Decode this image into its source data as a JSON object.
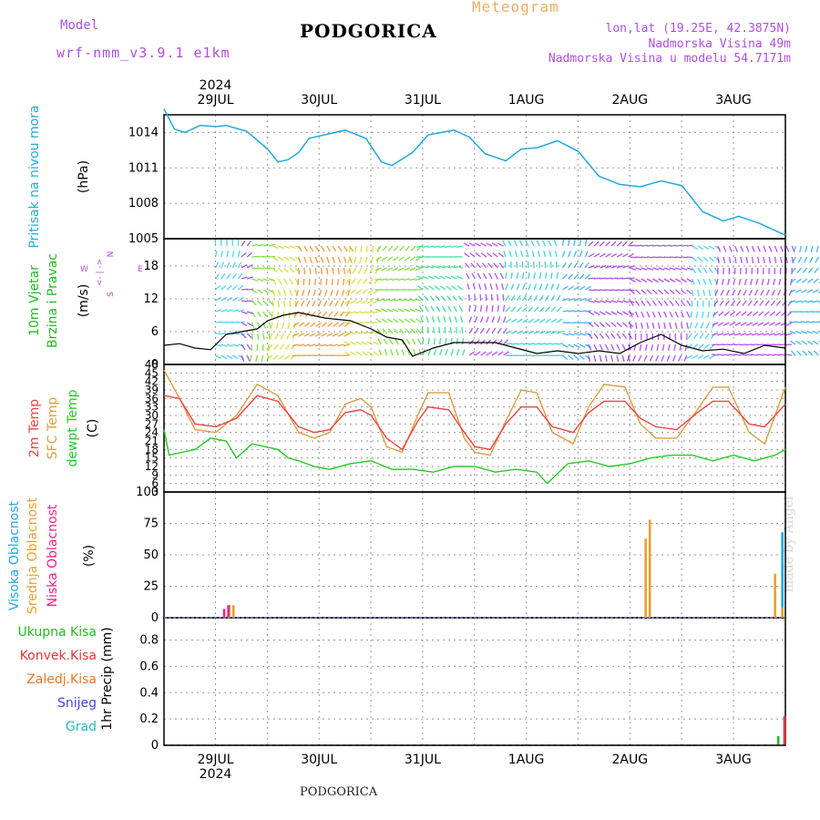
{
  "header": {
    "model_label": "Model",
    "model_name": "wrf-nmm_v3.9.1 e1km",
    "city": "PODGORICA",
    "meteogram": "Meteogram",
    "coords": "lon,lat (19.25E, 42.3875N)",
    "altitude": "Nadmorska Visina 49m",
    "model_altitude": "Nadmorska Visina u modelu 54.7171m",
    "year_top": "2024",
    "year_bottom": "2024",
    "footer_city": "PODGORICA",
    "watermark": "made by Angel"
  },
  "colors": {
    "pressure": "#22aadd",
    "wind_label": "#22bb22",
    "temp2m": "#ee4444",
    "sfc_temp": "#d8a040",
    "dewpoint": "#22cc22",
    "high_cloud": "#22aadd",
    "mid_cloud": "#e8a030",
    "low_cloud": "#ee2288",
    "total_precip": "#22bb22",
    "convective": "#ee3333",
    "freezing": "#ee7722",
    "snow": "#4444dd",
    "hail": "#22bbbb",
    "compass": "#b04ee0"
  },
  "chart_data": [
    {
      "type": "line",
      "ylabels": [
        "Pritisak na nivou mora",
        "(hPa)"
      ],
      "yticks": [
        "1014",
        "1011",
        "1008",
        "1005"
      ],
      "ylim": [
        1005,
        1015.5
      ],
      "days": [
        "29JUL",
        "30JUL",
        "31JUL",
        "1AUG",
        "2AUG",
        "3AUG"
      ],
      "xlim": [
        0,
        6
      ],
      "grid": true,
      "series": [
        {
          "x": [
            0,
            0.1,
            0.2,
            0.35,
            0.5,
            0.6,
            0.8,
            1.0,
            1.1,
            1.2,
            1.3,
            1.4,
            1.55,
            1.75,
            1.95,
            2.1,
            2.2,
            2.4,
            2.55,
            2.8,
            2.95,
            3.1,
            3.3,
            3.45,
            3.6,
            3.8,
            4.0,
            4.2,
            4.4,
            4.6,
            4.8,
            5.0,
            5.2,
            5.4,
            5.55,
            5.75,
            6.0
          ],
          "y": [
            1016,
            1014.3,
            1014,
            1014.6,
            1014.5,
            1014.6,
            1014.1,
            1012.6,
            1011.5,
            1011.7,
            1012.3,
            1013.5,
            1013.8,
            1014.2,
            1013.5,
            1011.5,
            1011.2,
            1012.3,
            1013.8,
            1014.2,
            1013.6,
            1012.2,
            1011.6,
            1012.6,
            1012.7,
            1013.3,
            1012.4,
            1010.3,
            1009.6,
            1009.4,
            1009.9,
            1009.5,
            1007.3,
            1006.5,
            1006.9,
            1006.3,
            1005.3
          ]
        }
      ]
    },
    {
      "type": "line",
      "ylabels": [
        "10m Vjetar",
        "Brzina i Pravac",
        "(m/s)"
      ],
      "yticks": [
        "18",
        "12",
        "6",
        "0"
      ],
      "ylim": [
        0,
        23
      ],
      "compass": {
        "n": "N",
        "s": "S",
        "e": "E",
        "w": "W"
      },
      "series": [
        {
          "name": "speed",
          "x": [
            0,
            0.15,
            0.3,
            0.45,
            0.6,
            0.9,
            1.0,
            1.15,
            1.3,
            1.55,
            1.8,
            2.0,
            2.15,
            2.3,
            2.4,
            2.6,
            2.8,
            3.0,
            3.2,
            3.4,
            3.6,
            3.8,
            4.0,
            4.2,
            4.4,
            4.6,
            4.8,
            5.0,
            5.2,
            5.4,
            5.6,
            5.8,
            6.0
          ],
          "y": [
            3.5,
            3.8,
            3.0,
            2.7,
            5.5,
            6.5,
            8.0,
            9.0,
            9.5,
            8.5,
            8.0,
            6.5,
            5.0,
            4.5,
            1.5,
            3.0,
            4.0,
            4.0,
            4.0,
            3.0,
            2.0,
            2.5,
            2.0,
            2.5,
            2.0,
            4.0,
            5.5,
            3.5,
            2.5,
            2.8,
            2.0,
            3.5,
            3.0
          ]
        }
      ]
    },
    {
      "type": "line",
      "ylabels": [
        "2m Temp",
        "SFC Temp",
        "dewpt Temp",
        "(C)"
      ],
      "yticks": [
        "48",
        "45",
        "42",
        "39",
        "36",
        "33",
        "30",
        "27",
        "24",
        "21",
        "18",
        "15",
        "12",
        "9",
        "6",
        "3"
      ],
      "ylim": [
        3,
        48
      ],
      "series": [
        {
          "name": "2m Temp",
          "x": [
            0,
            0.15,
            0.3,
            0.5,
            0.7,
            0.9,
            1.1,
            1.3,
            1.45,
            1.6,
            1.75,
            1.9,
            2.0,
            2.15,
            2.3,
            2.45,
            2.55,
            2.75,
            2.9,
            3.0,
            3.15,
            3.3,
            3.45,
            3.6,
            3.75,
            3.95,
            4.1,
            4.25,
            4.45,
            4.6,
            4.75,
            4.95,
            5.15,
            5.3,
            5.45,
            5.65,
            5.8,
            6.0
          ],
          "y": [
            37,
            36,
            27,
            26,
            29,
            37,
            35,
            26,
            24,
            25,
            31,
            32,
            30,
            22,
            18,
            28,
            33,
            32,
            24,
            19,
            18,
            27,
            33,
            33,
            26,
            24,
            31,
            35,
            35,
            29,
            26,
            25,
            31,
            35,
            35,
            27,
            26,
            34
          ]
        },
        {
          "name": "SFC Temp",
          "x": [
            0,
            0.15,
            0.3,
            0.5,
            0.7,
            0.9,
            1.1,
            1.3,
            1.45,
            1.6,
            1.75,
            1.9,
            2.0,
            2.15,
            2.3,
            2.45,
            2.55,
            2.75,
            2.9,
            3.0,
            3.15,
            3.3,
            3.45,
            3.6,
            3.75,
            3.95,
            4.1,
            4.25,
            4.45,
            4.6,
            4.75,
            4.95,
            5.15,
            5.3,
            5.45,
            5.65,
            5.8,
            6.0
          ],
          "y": [
            46,
            36,
            25,
            24,
            30,
            41,
            37,
            24,
            22,
            24,
            34,
            36,
            33,
            19,
            17,
            30,
            38,
            38,
            22,
            17,
            16,
            28,
            39,
            38,
            24,
            20,
            33,
            41,
            40,
            27,
            22,
            22,
            32,
            40,
            40,
            24,
            20,
            40
          ]
        },
        {
          "name": "dewpt Temp",
          "x": [
            0,
            0.05,
            0.3,
            0.45,
            0.6,
            0.7,
            0.85,
            1.1,
            1.2,
            1.3,
            1.45,
            1.6,
            1.8,
            2.0,
            2.2,
            2.4,
            2.6,
            2.8,
            3.0,
            3.2,
            3.4,
            3.6,
            3.7,
            3.9,
            4.1,
            4.3,
            4.5,
            4.7,
            4.9,
            5.1,
            5.3,
            5.5,
            5.7,
            5.9,
            6.0
          ],
          "y": [
            25,
            16,
            18,
            22,
            21,
            15,
            20,
            18,
            15,
            14,
            12,
            11,
            13,
            14,
            11,
            11,
            10,
            12,
            12,
            10,
            11,
            10,
            6,
            13,
            14,
            12,
            13,
            15,
            16,
            16,
            14,
            16,
            14,
            16,
            18
          ]
        }
      ]
    },
    {
      "type": "bar",
      "ylabels": [
        "Visoka Oblacnost",
        "Srednja Oblacnost",
        "Niska Oblacnost",
        "(%)"
      ],
      "yticks": [
        "100",
        "75",
        "50",
        "25",
        "0"
      ],
      "ylim": [
        0,
        100
      ],
      "series": [
        {
          "name": "Visoka Oblacnost",
          "x": [
            5.9,
            5.97
          ],
          "values": [
            28,
            68
          ]
        },
        {
          "name": "Srednja Oblacnost",
          "x": [
            0.63,
            0.67,
            4.65,
            4.69,
            5.9,
            5.97
          ],
          "values": [
            10,
            10,
            63,
            78,
            35,
            8
          ]
        },
        {
          "name": "Niska Oblacnost",
          "x": [
            0.58,
            0.62
          ],
          "values": [
            7,
            10
          ]
        }
      ]
    },
    {
      "type": "bar",
      "ylabels": [
        "1hr Precip (mm)"
      ],
      "legend": [
        "Ukupna Kisa",
        "Konvek.Kisa",
        "Zaledj.Kisa",
        "Snijeg",
        "Grad"
      ],
      "yticks": [
        "0.8",
        "0.6",
        "0.4",
        "0.2",
        "0"
      ],
      "ylim": [
        0,
        0.97
      ],
      "series": [
        {
          "name": "Ukupna Kisa",
          "x": [
            5.93
          ],
          "values": [
            0.07
          ]
        },
        {
          "name": "Konvek.Kisa",
          "x": [
            5.99
          ],
          "values": [
            0.22
          ]
        }
      ]
    }
  ]
}
